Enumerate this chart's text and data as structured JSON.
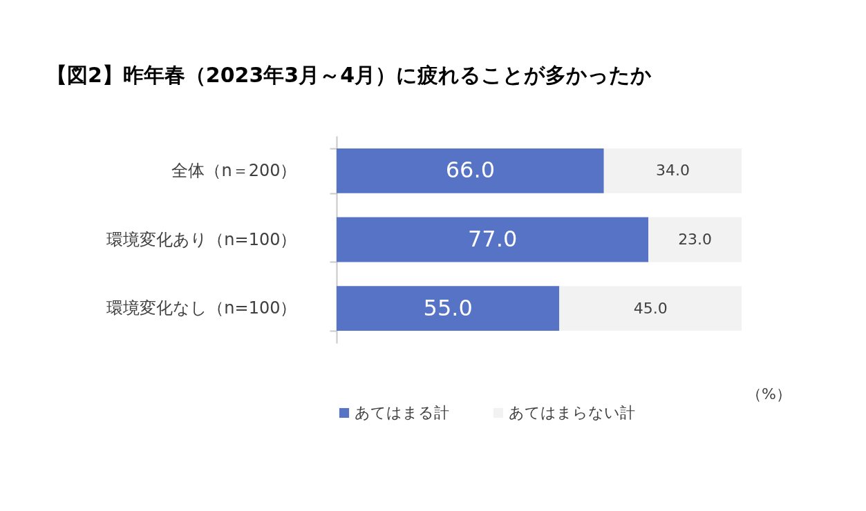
{
  "chart_data": {
    "type": "bar",
    "orientation": "horizontal",
    "stacked": true,
    "title": "【図2】昨年春（2023年3月～4月）に疲れることが多かったか",
    "categories": [
      "全体（n＝200）",
      "環境変化あり（n=100）",
      "環境変化なし（n=100）"
    ],
    "series": [
      {
        "name": "あてはまる計",
        "color": "#5673c6",
        "values": [
          66.0,
          77.0,
          55.0
        ],
        "value_labels": [
          "66.0",
          "77.0",
          "55.0"
        ]
      },
      {
        "name": "あてはまらない計",
        "color": "#f2f2f2",
        "values": [
          34.0,
          23.0,
          45.0
        ],
        "value_labels": [
          "34.0",
          "23.0",
          "45.0"
        ]
      }
    ],
    "tick_labels": "y",
    "legend": "bottom",
    "annotations": [
      "（%）"
    ]
  }
}
